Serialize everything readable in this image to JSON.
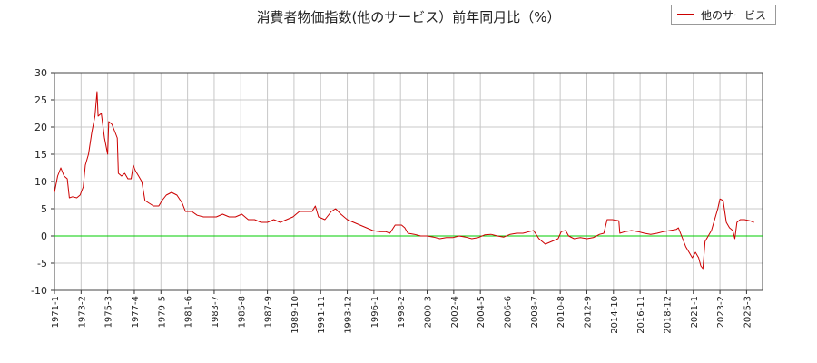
{
  "chart_data": {
    "type": "line",
    "title": "消費者物価指数(他のサービス）前年同月比（%）",
    "xlabel": "",
    "ylabel": "",
    "ylim": [
      -10,
      30
    ],
    "xlim": [
      "1971-01",
      "2026-06"
    ],
    "grid": true,
    "legend_position": "top-right",
    "yticks": [
      -10,
      -5,
      0,
      5,
      10,
      15,
      20,
      25,
      30
    ],
    "xticks": [
      "1971-1",
      "1973-2",
      "1975-3",
      "1977-4",
      "1979-5",
      "1981-6",
      "1983-7",
      "1985-8",
      "1987-9",
      "1989-10",
      "1991-11",
      "1993-12",
      "1996-1",
      "1998-2",
      "2000-3",
      "2002-4",
      "2004-5",
      "2006-6",
      "2008-7",
      "2010-8",
      "2012-9",
      "2014-10",
      "2016-11",
      "2018-12",
      "2021-1",
      "2023-2",
      "2025-3"
    ],
    "reference_line": {
      "y": 0,
      "color": "#00cc00"
    },
    "series": [
      {
        "name": "他のサービス",
        "color": "#cc0000",
        "points": [
          [
            "1971-01",
            8
          ],
          [
            "1971-04",
            11
          ],
          [
            "1971-07",
            12.5
          ],
          [
            "1971-10",
            11
          ],
          [
            "1972-01",
            10.5
          ],
          [
            "1972-03",
            7
          ],
          [
            "1972-06",
            7.2
          ],
          [
            "1972-10",
            7
          ],
          [
            "1973-01",
            7.5
          ],
          [
            "1973-04",
            9
          ],
          [
            "1973-06",
            13
          ],
          [
            "1973-09",
            15
          ],
          [
            "1973-12",
            19
          ],
          [
            "1974-03",
            22
          ],
          [
            "1974-05",
            26.5
          ],
          [
            "1974-06",
            22
          ],
          [
            "1974-09",
            22.5
          ],
          [
            "1974-12",
            18
          ],
          [
            "1975-03",
            15
          ],
          [
            "1975-04",
            21
          ],
          [
            "1975-07",
            20.5
          ],
          [
            "1975-10",
            19
          ],
          [
            "1975-12",
            18
          ],
          [
            "1976-01",
            11.5
          ],
          [
            "1976-04",
            11
          ],
          [
            "1976-07",
            11.5
          ],
          [
            "1976-10",
            10.5
          ],
          [
            "1977-01",
            10.5
          ],
          [
            "1977-03",
            13
          ],
          [
            "1977-05",
            12
          ],
          [
            "1977-08",
            11
          ],
          [
            "1977-11",
            10
          ],
          [
            "1978-02",
            6.5
          ],
          [
            "1978-06",
            6
          ],
          [
            "1978-10",
            5.5
          ],
          [
            "1979-03",
            5.5
          ],
          [
            "1979-06",
            6.5
          ],
          [
            "1979-10",
            7.5
          ],
          [
            "1980-03",
            8
          ],
          [
            "1980-08",
            7.5
          ],
          [
            "1981-01",
            6
          ],
          [
            "1981-04",
            4.5
          ],
          [
            "1981-10",
            4.5
          ],
          [
            "1982-03",
            3.8
          ],
          [
            "1982-09",
            3.5
          ],
          [
            "1983-03",
            3.5
          ],
          [
            "1983-09",
            3.5
          ],
          [
            "1984-03",
            4
          ],
          [
            "1984-09",
            3.5
          ],
          [
            "1985-03",
            3.5
          ],
          [
            "1985-09",
            4
          ],
          [
            "1986-03",
            3
          ],
          [
            "1986-09",
            3
          ],
          [
            "1987-03",
            2.5
          ],
          [
            "1987-09",
            2.5
          ],
          [
            "1988-03",
            3
          ],
          [
            "1988-09",
            2.5
          ],
          [
            "1989-03",
            3
          ],
          [
            "1989-09",
            3.5
          ],
          [
            "1990-03",
            4.5
          ],
          [
            "1990-09",
            4.5
          ],
          [
            "1991-03",
            4.5
          ],
          [
            "1991-06",
            5.5
          ],
          [
            "1991-09",
            3.5
          ],
          [
            "1992-03",
            3
          ],
          [
            "1992-09",
            4.5
          ],
          [
            "1993-01",
            5
          ],
          [
            "1993-06",
            4
          ],
          [
            "1993-12",
            3
          ],
          [
            "1994-06",
            2.5
          ],
          [
            "1994-12",
            2
          ],
          [
            "1995-06",
            1.5
          ],
          [
            "1995-12",
            1
          ],
          [
            "1996-06",
            0.8
          ],
          [
            "1996-12",
            0.8
          ],
          [
            "1997-04",
            0.5
          ],
          [
            "1997-09",
            2
          ],
          [
            "1998-03",
            2
          ],
          [
            "1998-06",
            1.5
          ],
          [
            "1998-09",
            0.5
          ],
          [
            "1999-03",
            0.3
          ],
          [
            "1999-09",
            0
          ],
          [
            "2000-03",
            0
          ],
          [
            "2000-09",
            -0.2
          ],
          [
            "2001-03",
            -0.5
          ],
          [
            "2001-09",
            -0.3
          ],
          [
            "2002-03",
            -0.3
          ],
          [
            "2002-09",
            0
          ],
          [
            "2003-03",
            -0.2
          ],
          [
            "2003-09",
            -0.5
          ],
          [
            "2004-03",
            -0.3
          ],
          [
            "2004-09",
            0.2
          ],
          [
            "2005-03",
            0.3
          ],
          [
            "2005-09",
            0
          ],
          [
            "2006-03",
            -0.2
          ],
          [
            "2006-09",
            0.3
          ],
          [
            "2007-03",
            0.5
          ],
          [
            "2007-09",
            0.5
          ],
          [
            "2008-03",
            0.8
          ],
          [
            "2008-07",
            1
          ],
          [
            "2008-12",
            -0.5
          ],
          [
            "2009-06",
            -1.5
          ],
          [
            "2009-12",
            -1
          ],
          [
            "2010-06",
            -0.5
          ],
          [
            "2010-09",
            0.8
          ],
          [
            "2011-01",
            1
          ],
          [
            "2011-04",
            0
          ],
          [
            "2011-09",
            -0.5
          ],
          [
            "2012-03",
            -0.3
          ],
          [
            "2012-09",
            -0.5
          ],
          [
            "2013-03",
            -0.3
          ],
          [
            "2013-09",
            0.3
          ],
          [
            "2014-01",
            0.5
          ],
          [
            "2014-04",
            3
          ],
          [
            "2014-09",
            3
          ],
          [
            "2015-03",
            2.8
          ],
          [
            "2015-04",
            0.5
          ],
          [
            "2015-09",
            0.8
          ],
          [
            "2016-03",
            1
          ],
          [
            "2016-09",
            0.8
          ],
          [
            "2017-03",
            0.5
          ],
          [
            "2017-09",
            0.3
          ],
          [
            "2018-03",
            0.5
          ],
          [
            "2018-09",
            0.8
          ],
          [
            "2019-03",
            1
          ],
          [
            "2019-09",
            1.2
          ],
          [
            "2019-11",
            1.5
          ],
          [
            "2020-03",
            -0.5
          ],
          [
            "2020-06",
            -2
          ],
          [
            "2020-09",
            -3
          ],
          [
            "2020-12",
            -4
          ],
          [
            "2021-03",
            -3
          ],
          [
            "2021-06",
            -4
          ],
          [
            "2021-08",
            -5.5
          ],
          [
            "2021-10",
            -6
          ],
          [
            "2021-12",
            -1
          ],
          [
            "2022-03",
            0
          ],
          [
            "2022-06",
            1
          ],
          [
            "2022-09",
            3
          ],
          [
            "2022-12",
            5
          ],
          [
            "2023-02",
            6.8
          ],
          [
            "2023-05",
            6.5
          ],
          [
            "2023-08",
            2.5
          ],
          [
            "2023-11",
            1.5
          ],
          [
            "2024-02",
            1
          ],
          [
            "2024-04",
            -0.5
          ],
          [
            "2024-06",
            2.5
          ],
          [
            "2024-09",
            3
          ],
          [
            "2025-01",
            3
          ],
          [
            "2025-06",
            2.8
          ],
          [
            "2025-10",
            2.5
          ]
        ]
      }
    ]
  }
}
